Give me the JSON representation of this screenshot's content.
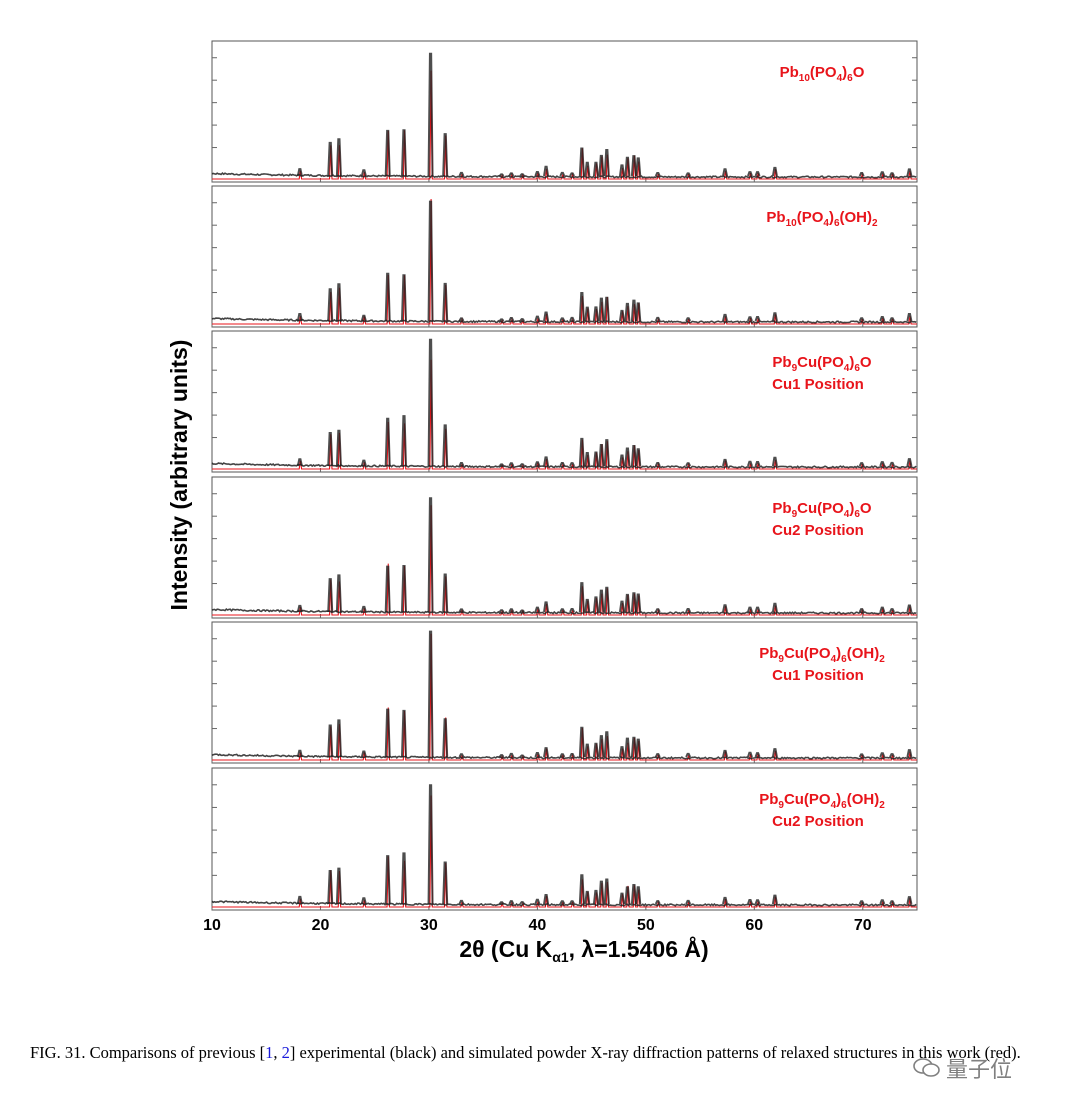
{
  "chart_data": {
    "type": "line",
    "ylabel": "Intensity (arbitrary units)",
    "xlabel": {
      "text": "2θ (Cu K",
      "sub": "α1",
      "after": ", λ=1.5406 Å)"
    },
    "xlim": [
      10,
      75
    ],
    "x_ticks": [
      10,
      20,
      30,
      40,
      50,
      60,
      70
    ],
    "colors": {
      "experimental": "#222222",
      "simulated": "#e8141b",
      "label": "#e8141b"
    },
    "series_legend": {
      "experimental": "black",
      "simulated": "red"
    },
    "peaks": [
      {
        "x": 18.1,
        "h": 0.07
      },
      {
        "x": 20.9,
        "h": 0.28
      },
      {
        "x": 21.7,
        "h": 0.31
      },
      {
        "x": 24.0,
        "h": 0.06
      },
      {
        "x": 26.2,
        "h": 0.41
      },
      {
        "x": 27.7,
        "h": 0.41
      },
      {
        "x": 30.15,
        "h": 1.0
      },
      {
        "x": 31.5,
        "h": 0.34
      },
      {
        "x": 33.0,
        "h": 0.04
      },
      {
        "x": 36.7,
        "h": 0.03
      },
      {
        "x": 37.6,
        "h": 0.04
      },
      {
        "x": 38.6,
        "h": 0.03
      },
      {
        "x": 40.0,
        "h": 0.05
      },
      {
        "x": 40.8,
        "h": 0.09
      },
      {
        "x": 42.3,
        "h": 0.04
      },
      {
        "x": 43.2,
        "h": 0.04
      },
      {
        "x": 44.1,
        "h": 0.25
      },
      {
        "x": 44.6,
        "h": 0.12
      },
      {
        "x": 45.4,
        "h": 0.13
      },
      {
        "x": 45.9,
        "h": 0.19
      },
      {
        "x": 46.4,
        "h": 0.22
      },
      {
        "x": 47.8,
        "h": 0.1
      },
      {
        "x": 48.3,
        "h": 0.16
      },
      {
        "x": 48.9,
        "h": 0.18
      },
      {
        "x": 49.3,
        "h": 0.16
      },
      {
        "x": 51.1,
        "h": 0.04
      },
      {
        "x": 53.9,
        "h": 0.04
      },
      {
        "x": 57.3,
        "h": 0.07
      },
      {
        "x": 59.6,
        "h": 0.05
      },
      {
        "x": 60.3,
        "h": 0.05
      },
      {
        "x": 61.9,
        "h": 0.08
      },
      {
        "x": 69.9,
        "h": 0.04
      },
      {
        "x": 71.8,
        "h": 0.05
      },
      {
        "x": 72.7,
        "h": 0.04
      },
      {
        "x": 74.3,
        "h": 0.07
      }
    ],
    "panels": [
      {
        "label": [
          {
            "t": "Pb"
          },
          {
            "t": "10",
            "sub": true
          },
          {
            "t": "(PO"
          },
          {
            "t": "4",
            "sub": true
          },
          {
            "t": ")"
          },
          {
            "t": "6",
            "sub": true
          },
          {
            "t": "O"
          }
        ],
        "label2": ""
      },
      {
        "label": [
          {
            "t": "Pb"
          },
          {
            "t": "10",
            "sub": true
          },
          {
            "t": "(PO"
          },
          {
            "t": "4",
            "sub": true
          },
          {
            "t": ")"
          },
          {
            "t": "6",
            "sub": true
          },
          {
            "t": "(OH)"
          },
          {
            "t": "2",
            "sub": true
          }
        ],
        "label2": ""
      },
      {
        "label": [
          {
            "t": "Pb"
          },
          {
            "t": "9",
            "sub": true
          },
          {
            "t": "Cu(PO"
          },
          {
            "t": "4",
            "sub": true
          },
          {
            "t": ")"
          },
          {
            "t": "6",
            "sub": true
          },
          {
            "t": "O"
          }
        ],
        "label2": "Cu1 Position"
      },
      {
        "label": [
          {
            "t": "Pb"
          },
          {
            "t": "9",
            "sub": true
          },
          {
            "t": "Cu(PO"
          },
          {
            "t": "4",
            "sub": true
          },
          {
            "t": ")"
          },
          {
            "t": "6",
            "sub": true
          },
          {
            "t": "O"
          }
        ],
        "label2": "Cu2 Position"
      },
      {
        "label": [
          {
            "t": "Pb"
          },
          {
            "t": "9",
            "sub": true
          },
          {
            "t": "Cu(PO"
          },
          {
            "t": "4",
            "sub": true
          },
          {
            "t": ")"
          },
          {
            "t": "6",
            "sub": true
          },
          {
            "t": "(OH)"
          },
          {
            "t": "2",
            "sub": true
          }
        ],
        "label2": "Cu1 Position"
      },
      {
        "label": [
          {
            "t": "Pb"
          },
          {
            "t": "9",
            "sub": true
          },
          {
            "t": "Cu(PO"
          },
          {
            "t": "4",
            "sub": true
          },
          {
            "t": ")"
          },
          {
            "t": "6",
            "sub": true
          },
          {
            "t": "(OH)"
          },
          {
            "t": "2",
            "sub": true
          }
        ],
        "label2": "Cu2 Position"
      }
    ]
  },
  "caption": {
    "prefix": "FIG. 31.  Comparisons of previous [",
    "ref1": "1",
    "sep": ", ",
    "ref2": "2",
    "suffix": "] experimental (black) and simulated powder X-ray diffraction patterns of relaxed structures in this work (red)."
  },
  "watermark": {
    "text": "量子位",
    "icon": "wechat-icon"
  }
}
